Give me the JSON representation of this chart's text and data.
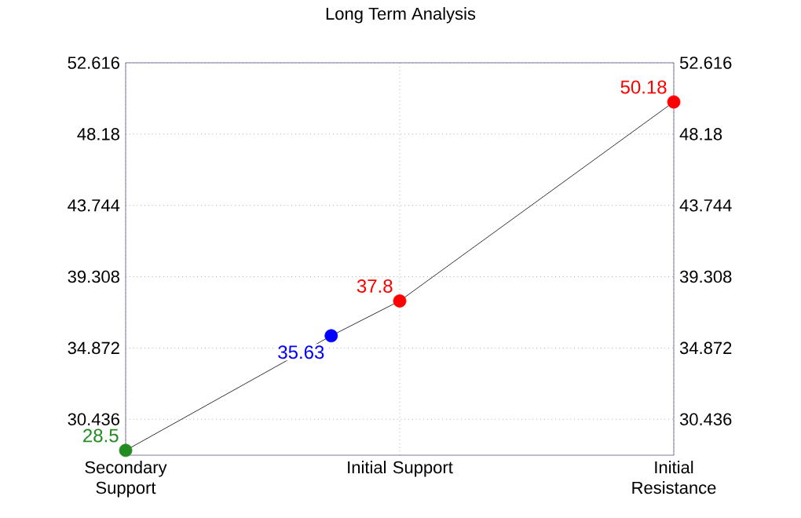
{
  "chart_data": {
    "type": "line",
    "title": "Long Term Analysis",
    "categories": [
      "Secondary Support",
      null,
      null,
      null,
      "Initial Support",
      null,
      null,
      null,
      "Initial Resistance"
    ],
    "series": [
      {
        "color": "#000000",
        "colors": [
          "#228b22",
          null,
          null,
          "#0000ff",
          "#ff0000",
          null,
          null,
          null,
          "#ff0000"
        ],
        "values": [
          28.5,
          null,
          null,
          35.63,
          37.8,
          null,
          null,
          null,
          50.18
        ]
      }
    ],
    "ylim": [
      28.2,
      52.616
    ],
    "yticks": [
      30.436,
      34.872,
      39.308,
      43.744,
      48.18,
      52.616
    ],
    "y2lim": [
      28.2,
      52.616
    ],
    "y2ticks": [
      30.436,
      34.872,
      39.308,
      43.744,
      48.18,
      52.616
    ],
    "grid": true,
    "marker": "circle",
    "line_style": "solid",
    "data_labels": true
  }
}
